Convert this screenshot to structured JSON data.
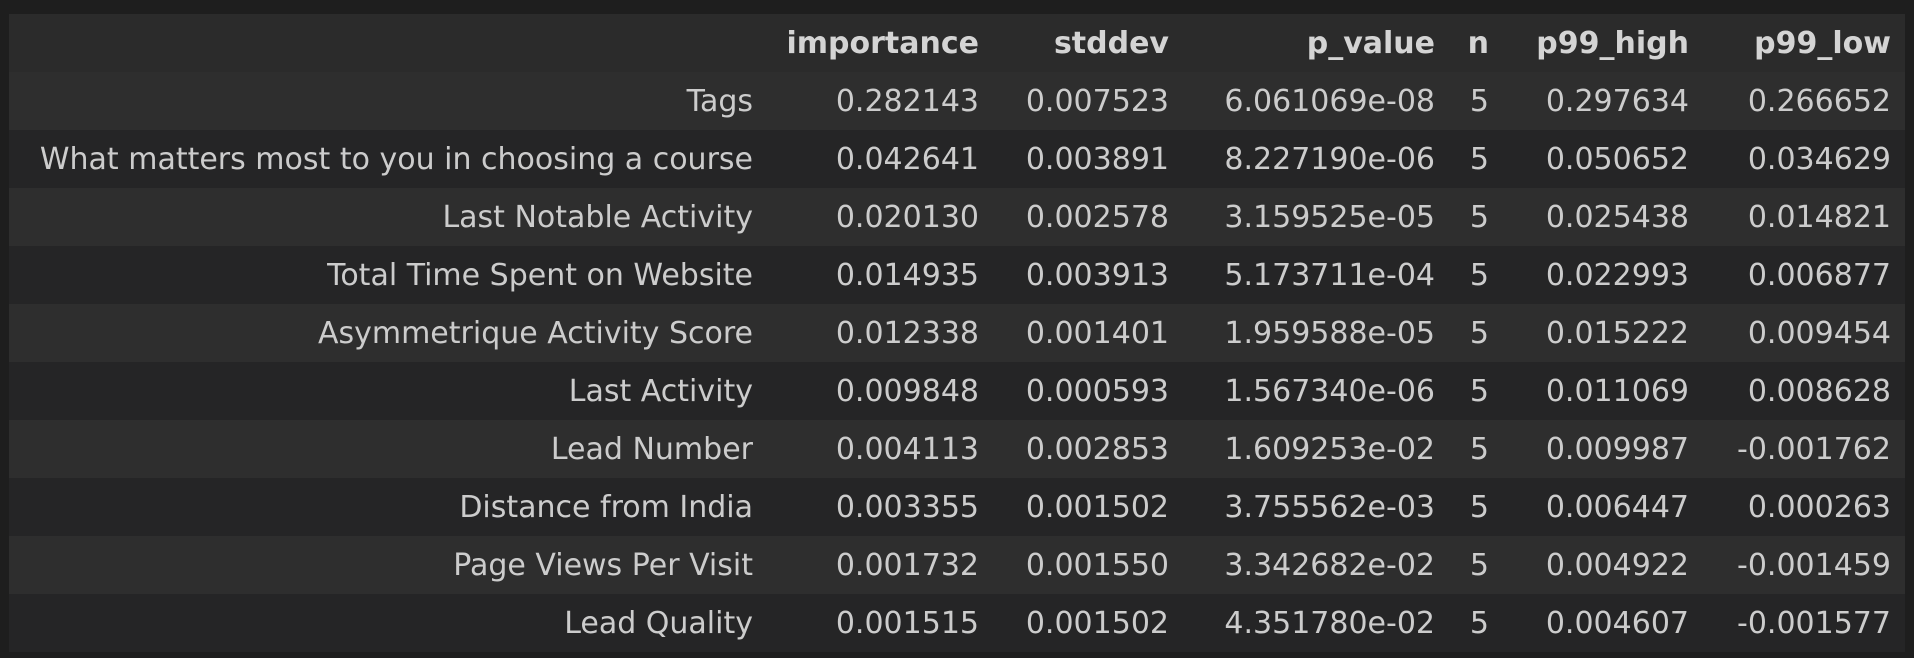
{
  "table": {
    "index_header": "",
    "columns": [
      "importance",
      "stddev",
      "p_value",
      "n",
      "p99_high",
      "p99_low"
    ],
    "rows": [
      {
        "label": "Tags",
        "values": [
          "0.282143",
          "0.007523",
          "6.061069e-08",
          "5",
          "0.297634",
          "0.266652"
        ]
      },
      {
        "label": "What matters most to you in choosing a course",
        "values": [
          "0.042641",
          "0.003891",
          "8.227190e-06",
          "5",
          "0.050652",
          "0.034629"
        ]
      },
      {
        "label": "Last Notable Activity",
        "values": [
          "0.020130",
          "0.002578",
          "3.159525e-05",
          "5",
          "0.025438",
          "0.014821"
        ]
      },
      {
        "label": "Total Time Spent on Website",
        "values": [
          "0.014935",
          "0.003913",
          "5.173711e-04",
          "5",
          "0.022993",
          "0.006877"
        ]
      },
      {
        "label": "Asymmetrique Activity Score",
        "values": [
          "0.012338",
          "0.001401",
          "1.959588e-05",
          "5",
          "0.015222",
          "0.009454"
        ]
      },
      {
        "label": "Last Activity",
        "values": [
          "0.009848",
          "0.000593",
          "1.567340e-06",
          "5",
          "0.011069",
          "0.008628"
        ]
      },
      {
        "label": "Lead Number",
        "values": [
          "0.004113",
          "0.002853",
          "1.609253e-02",
          "5",
          "0.009987",
          "-0.001762"
        ]
      },
      {
        "label": "Distance from India",
        "values": [
          "0.003355",
          "0.001502",
          "3.755562e-03",
          "5",
          "0.006447",
          "0.000263"
        ]
      },
      {
        "label": "Page Views Per Visit",
        "values": [
          "0.001732",
          "0.001550",
          "3.342682e-02",
          "5",
          "0.004922",
          "-0.001459"
        ]
      },
      {
        "label": "Lead Quality",
        "values": [
          "0.001515",
          "0.001502",
          "4.351780e-02",
          "5",
          "0.004607",
          "-0.001577"
        ]
      }
    ]
  },
  "colors": {
    "background": "#1e1e1e",
    "header_row": "#2b2b2b",
    "row_odd": "#2e2e2e",
    "row_even": "#252526",
    "text": "#cccccc"
  }
}
